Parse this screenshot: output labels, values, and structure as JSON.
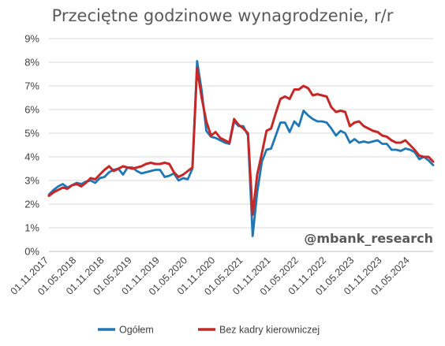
{
  "chart_data": {
    "type": "line",
    "title": "Przeciętne godzinowe wynagrodzenie, r/r",
    "watermark": "@mbank_research",
    "ylim": [
      0,
      9
    ],
    "yticks": [
      "0%",
      "1%",
      "2%",
      "3%",
      "4%",
      "5%",
      "6%",
      "7%",
      "8%",
      "9%"
    ],
    "xlabels": [
      "01.11.2017",
      "01.05.2018",
      "01.11.2018",
      "01.05.2019",
      "01.11.2019",
      "01.05.2020",
      "01.11.2020",
      "01.05.2021",
      "01.11.2021",
      "01.05.2022",
      "01.11.2022",
      "01.05.2023",
      "01.11.2023",
      "01.05.2024"
    ],
    "grid": "horizontal",
    "legend_position": "bottom",
    "series": [
      {
        "name": "Ogółem",
        "color": "#1f77b4",
        "values": [
          2.4,
          2.6,
          2.75,
          2.85,
          2.7,
          2.8,
          2.9,
          2.85,
          2.95,
          3.0,
          2.9,
          3.1,
          3.15,
          3.35,
          3.45,
          3.5,
          3.25,
          3.55,
          3.55,
          3.4,
          3.3,
          3.35,
          3.4,
          3.45,
          3.45,
          3.15,
          3.2,
          3.3,
          3.0,
          3.1,
          3.05,
          3.5,
          8.05,
          6.8,
          5.1,
          4.85,
          4.8,
          4.7,
          4.6,
          4.55,
          5.5,
          5.3,
          5.3,
          4.9,
          0.65,
          2.5,
          3.8,
          4.3,
          4.35,
          4.9,
          5.45,
          5.45,
          5.05,
          5.5,
          5.3,
          5.95,
          5.75,
          5.6,
          5.5,
          5.5,
          5.45,
          5.2,
          4.9,
          5.1,
          5.0,
          4.6,
          4.75,
          4.6,
          4.65,
          4.6,
          4.65,
          4.7,
          4.55,
          4.55,
          4.3,
          4.3,
          4.25,
          4.35,
          4.3,
          4.2,
          3.9,
          4.0,
          3.85,
          3.65
        ]
      },
      {
        "name": "Bez kadry kierowniczej",
        "color": "#c62828",
        "values": [
          2.35,
          2.5,
          2.6,
          2.7,
          2.65,
          2.8,
          2.85,
          2.75,
          2.9,
          3.1,
          3.05,
          3.25,
          3.45,
          3.6,
          3.4,
          3.5,
          3.6,
          3.55,
          3.5,
          3.55,
          3.6,
          3.7,
          3.75,
          3.7,
          3.7,
          3.75,
          3.7,
          3.35,
          3.15,
          3.25,
          3.4,
          3.55,
          7.75,
          6.5,
          5.5,
          4.9,
          5.05,
          4.8,
          4.7,
          4.6,
          5.6,
          5.35,
          5.2,
          5.0,
          1.55,
          3.25,
          4.15,
          5.1,
          5.2,
          5.85,
          6.45,
          6.55,
          6.45,
          6.85,
          6.85,
          7.0,
          6.9,
          6.6,
          6.65,
          6.6,
          6.55,
          6.1,
          5.9,
          5.95,
          5.9,
          5.3,
          5.45,
          5.5,
          5.3,
          5.2,
          5.1,
          5.05,
          4.9,
          4.85,
          4.7,
          4.6,
          4.6,
          4.7,
          4.5,
          4.3,
          4.05,
          4.0,
          4.0,
          3.8
        ]
      }
    ]
  }
}
